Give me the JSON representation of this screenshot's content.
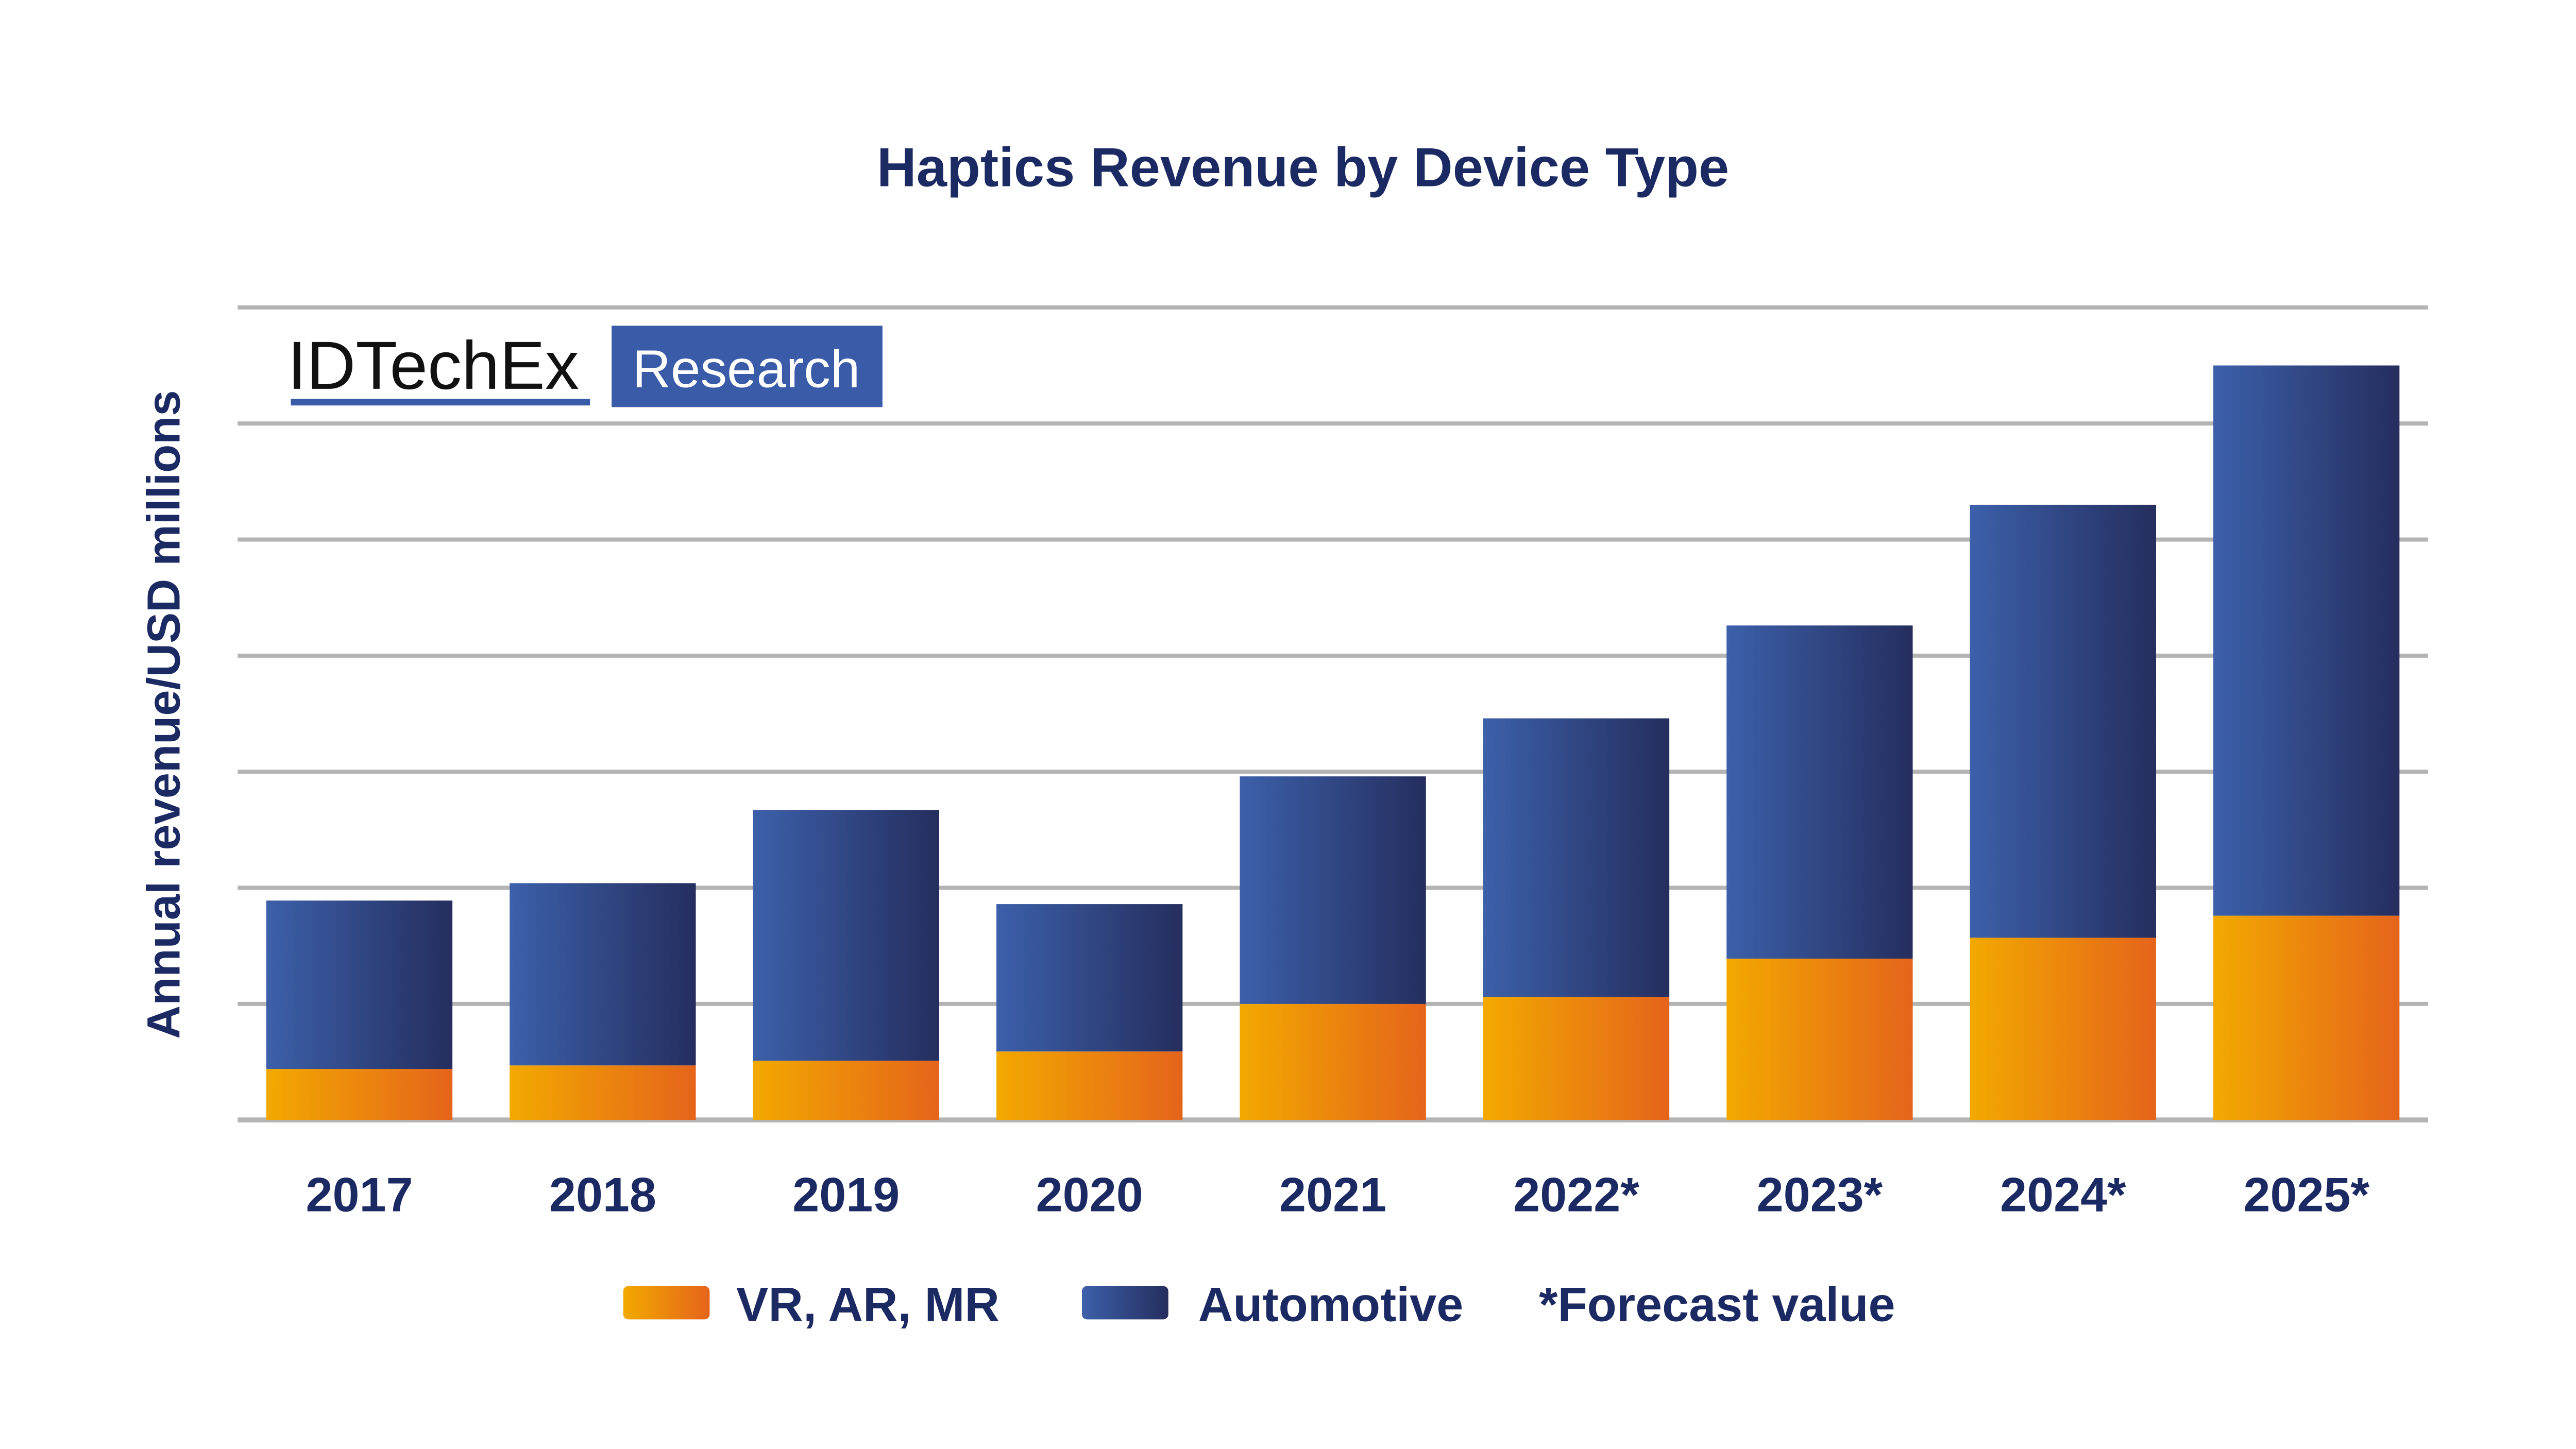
{
  "chart_data": {
    "type": "bar",
    "stacked": true,
    "title": "Haptics Revenue by Device Type",
    "ylabel": "Annual revenue/USD millions",
    "xlabel": "",
    "categories": [
      "2017",
      "2018",
      "2019",
      "2020",
      "2021",
      "2022*",
      "2023*",
      "2024*",
      "2025*"
    ],
    "series": [
      {
        "name": "VR, AR, MR",
        "color": "#ec8a0c",
        "values": [
          0.44,
          0.47,
          0.51,
          0.59,
          1.0,
          1.06,
          1.39,
          1.57,
          1.76
        ]
      },
      {
        "name": "Automotive",
        "color": "#2f4585",
        "values": [
          1.45,
          1.57,
          2.16,
          1.27,
          1.96,
          2.4,
          2.87,
          3.73,
          4.74
        ]
      }
    ],
    "ylim": [
      0,
      7
    ],
    "y_tick_labels_shown": false,
    "grid": true,
    "legend_position": "bottom",
    "note": "*Forecast value"
  },
  "logo": {
    "brand": "IDTechEx",
    "tag": "Research"
  },
  "colors": {
    "title": "#1b2a63",
    "grid": "#b4b4b4",
    "logo_box": "#3a5ca8"
  }
}
